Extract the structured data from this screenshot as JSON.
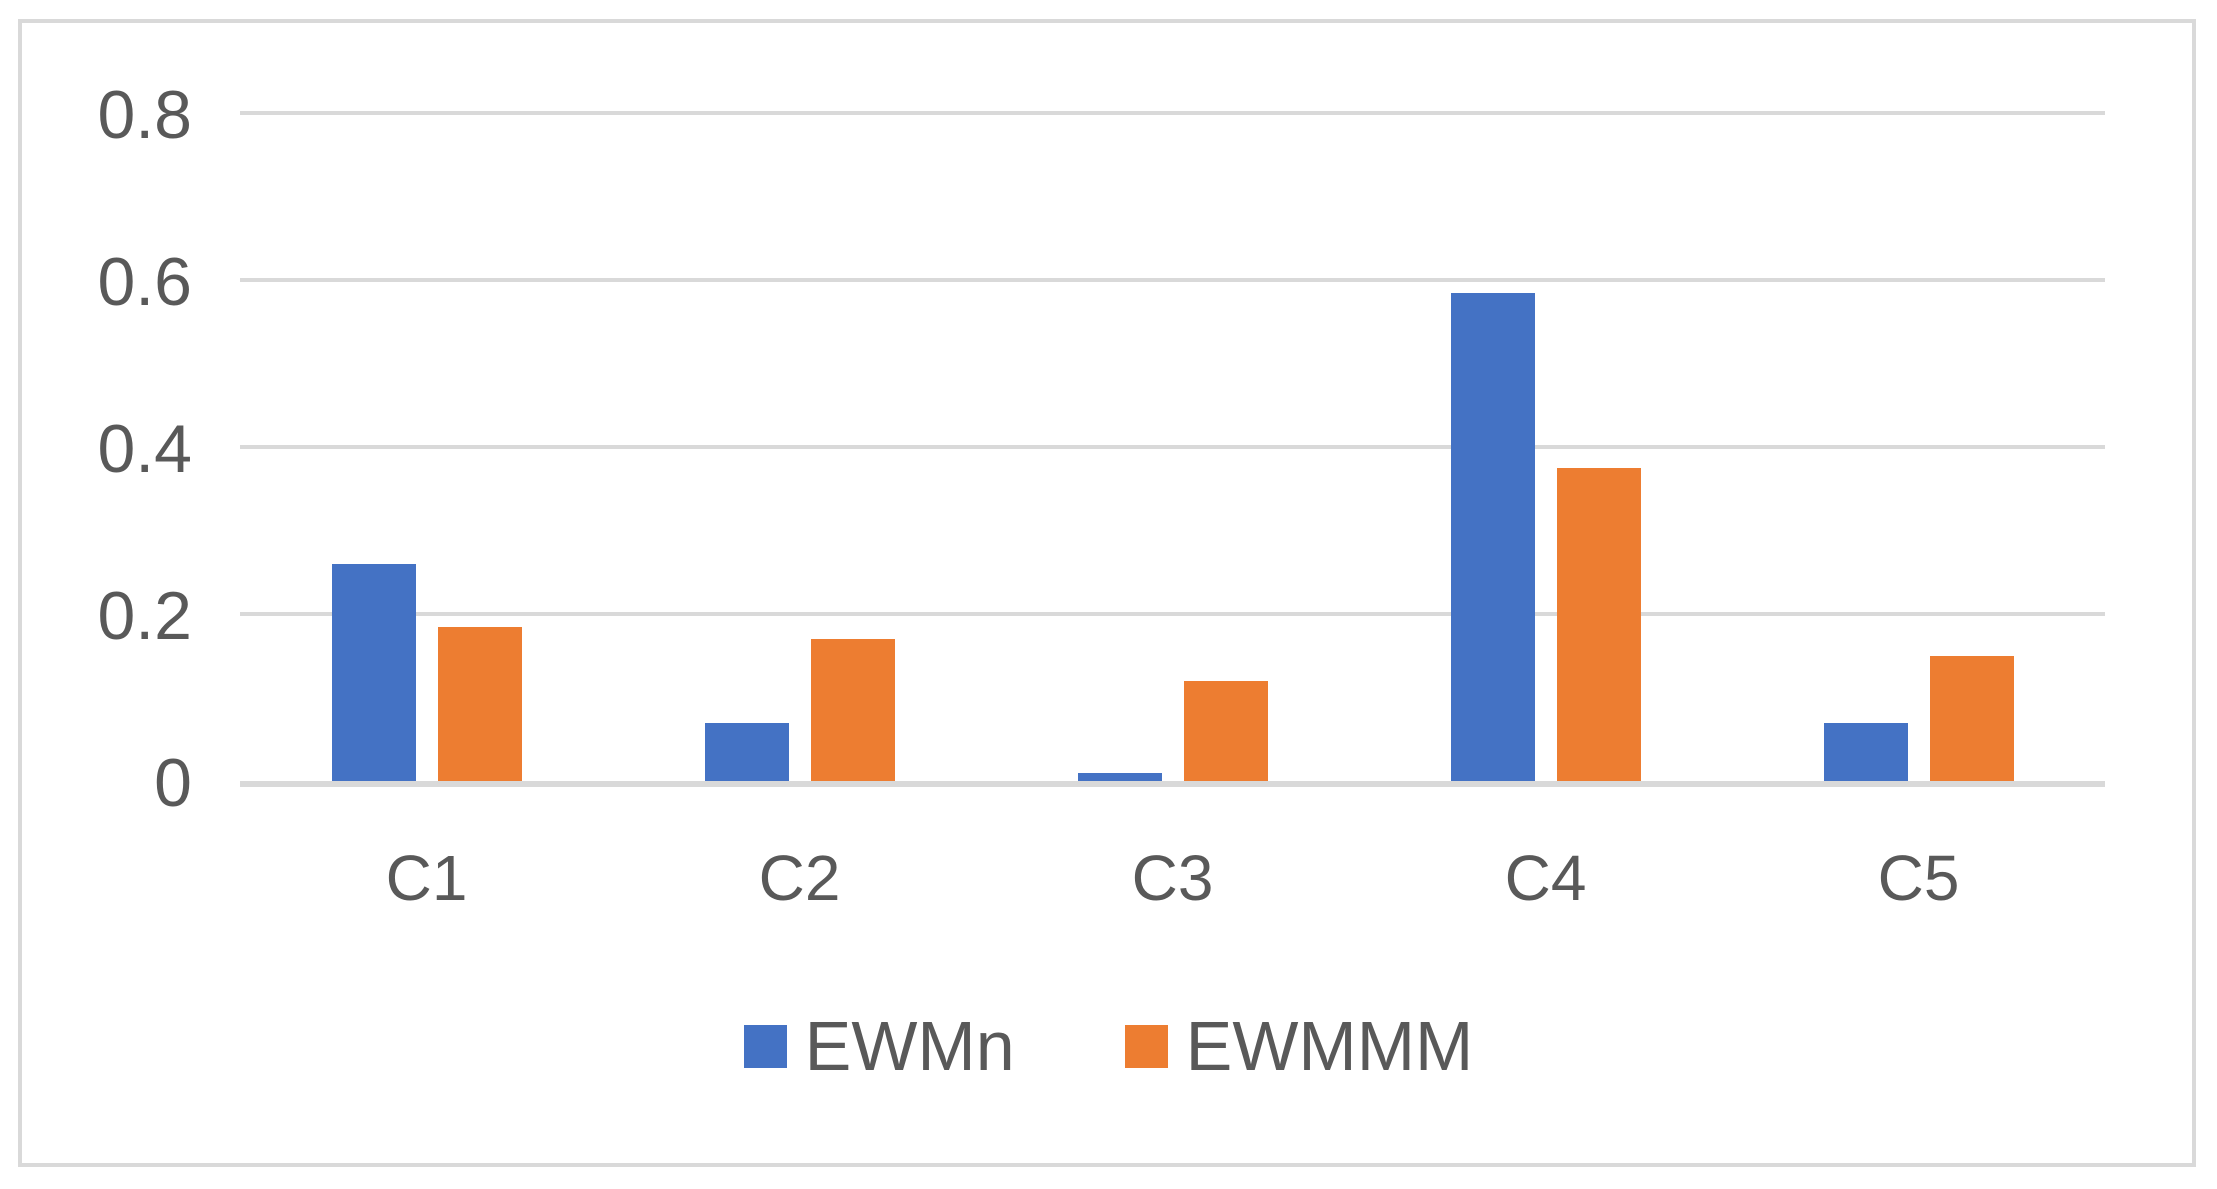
{
  "chart_data": {
    "type": "bar",
    "title": "",
    "xlabel": "",
    "ylabel": "",
    "categories": [
      "C1",
      "C2",
      "C3",
      "C4",
      "C5"
    ],
    "series": [
      {
        "name": "EWMn",
        "color": "#4472C4",
        "values": [
          0.26,
          0.07,
          0.01,
          0.585,
          0.07
        ]
      },
      {
        "name": "EWMMM",
        "color": "#ED7D31",
        "values": [
          0.185,
          0.17,
          0.12,
          0.375,
          0.15
        ]
      }
    ],
    "ylim": [
      0,
      0.8
    ],
    "yticks": [
      0,
      0.2,
      0.4,
      0.6,
      0.8
    ],
    "ytick_labels": [
      "0",
      "0.2",
      "0.4",
      "0.6",
      "0.8"
    ],
    "grid": true,
    "legend_position": "bottom"
  },
  "colors": {
    "background": "#FFFFFF",
    "text": "#595959",
    "gridline": "#D9D9D9",
    "frame_border": "#D9D9D9",
    "series_blue": "#4472C4",
    "series_orange": "#ED7D31"
  }
}
